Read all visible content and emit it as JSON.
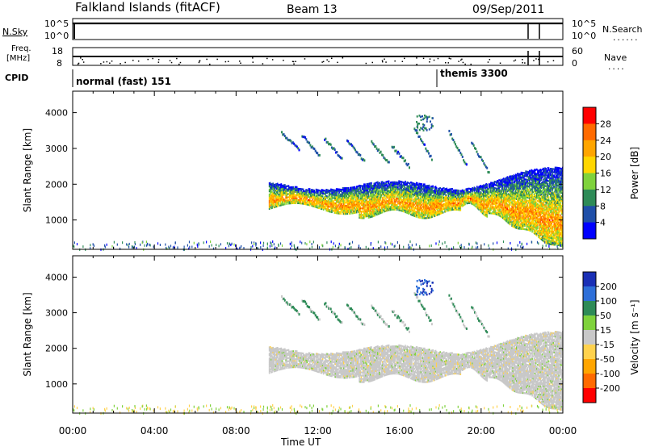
{
  "header": {
    "station": "Falkland Islands (fitACF)",
    "beam": "Beam 13",
    "date": "09/Sep/2011"
  },
  "left_labels": {
    "nsky": "N.Sky",
    "freq_line1": "Freq.",
    "freq_line2": "[MHz]",
    "cpid": "CPID"
  },
  "right_labels": {
    "nsearch": "N.Search",
    "nave": "Nave"
  },
  "strips": {
    "noise_ticks_left": [
      "10^5",
      "10^0"
    ],
    "noise_ticks_right": [
      "10^5",
      "10^0"
    ],
    "freq_ticks_left": [
      "18",
      "8"
    ],
    "nave_ticks_right": [
      "60",
      "0"
    ]
  },
  "cpid": {
    "segments": [
      {
        "label": "normal (fast) 151",
        "start_hour": 0.0
      },
      {
        "label": "themis 3300",
        "start_hour": 18.0
      }
    ]
  },
  "colorbars": {
    "power": {
      "label": "Power [dB]",
      "ticks": [
        "28",
        "24",
        "20",
        "16",
        "12",
        "8",
        "4"
      ],
      "colors": [
        "#ff0000",
        "#ff6a00",
        "#ffa500",
        "#ffd600",
        "#7fd23c",
        "#2e8b57",
        "#1f4fa8",
        "#0000ff"
      ]
    },
    "velocity": {
      "label": "Velocity [m s⁻¹]",
      "ticks": [
        "200",
        "100",
        "50",
        "15",
        "-15",
        "-50",
        "-100",
        "-200"
      ],
      "colors": [
        "#1a2fb5",
        "#2e6fd8",
        "#2e8b57",
        "#7fd23c",
        "#c8c8c8",
        "#ffd24d",
        "#ffa500",
        "#ff6a00",
        "#ff0000"
      ]
    }
  },
  "chart_data": [
    {
      "type": "heatmap",
      "title": "",
      "xlabel": "",
      "ylabel": "Slant Range [km]",
      "x_ticks": [
        "00:00",
        "04:00",
        "08:00",
        "12:00",
        "16:00",
        "20:00",
        "00:00"
      ],
      "y_ticks": [
        "4000",
        "3000",
        "2000",
        "1000"
      ],
      "xlim": [
        0,
        24
      ],
      "ylim": [
        180,
        4600
      ],
      "quantity": "Power [dB]",
      "scale": [
        0,
        30
      ],
      "regions": [
        {
          "name": "main band",
          "t_start": 9.6,
          "t_end": 24.0,
          "r_low": 950,
          "r_high": 2300,
          "typical_value": 16
        },
        {
          "name": "upper arcs",
          "t_start": 9.8,
          "t_end": 20.5,
          "r_low": 2400,
          "r_high": 3700,
          "typical_value": 6
        },
        {
          "name": "near range",
          "t_start": 0.0,
          "t_end": 24.0,
          "r_low": 180,
          "r_high": 450,
          "typical_value": 4
        }
      ]
    },
    {
      "type": "heatmap",
      "title": "",
      "xlabel": "Time UT",
      "ylabel": "Slant Range [km]",
      "x_ticks": [
        "00:00",
        "04:00",
        "08:00",
        "12:00",
        "16:00",
        "20:00",
        "00:00"
      ],
      "y_ticks": [
        "4000",
        "3000",
        "2000",
        "1000"
      ],
      "xlim": [
        0,
        24
      ],
      "ylim": [
        180,
        4600
      ],
      "quantity": "Velocity [m s⁻¹]",
      "scale": [
        -200,
        200
      ],
      "regions": [
        {
          "name": "ground scatter band",
          "t_start": 9.6,
          "t_end": 24.0,
          "r_low": 900,
          "r_high": 2300,
          "typical_value": 0
        },
        {
          "name": "upper arcs",
          "t_start": 9.8,
          "t_end": 20.5,
          "r_low": 2400,
          "r_high": 3700,
          "typical_value": 60
        },
        {
          "name": "high velocity patch",
          "t_start": 16.8,
          "t_end": 17.6,
          "r_low": 3500,
          "r_high": 3950,
          "typical_value": 200
        },
        {
          "name": "near range",
          "t_start": 0.0,
          "t_end": 24.0,
          "r_low": 180,
          "r_high": 450,
          "typical_value": -30
        }
      ]
    }
  ]
}
